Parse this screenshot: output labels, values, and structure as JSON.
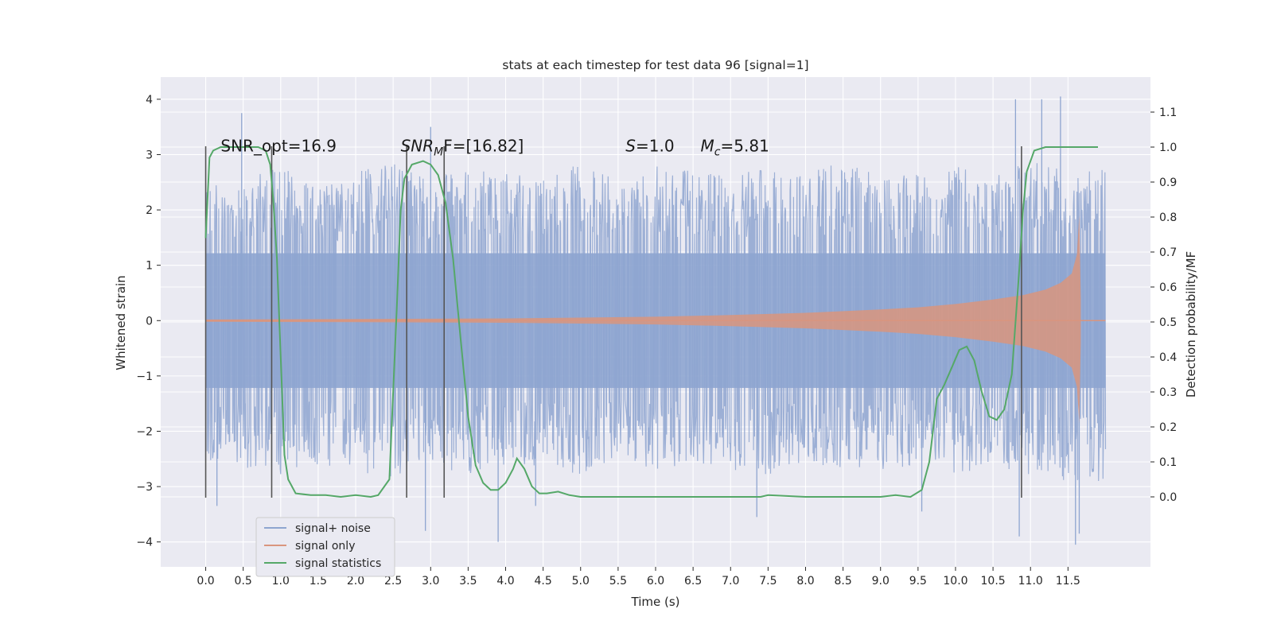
{
  "chart_data": {
    "type": "line",
    "title": "stats at each timestep for test data 96 [signal=1]",
    "xlabel": "Time (s)",
    "ylabel": "Whitened strain",
    "ylabel_right": "Detection probability/MF",
    "xlim": [
      -0.6,
      12.6
    ],
    "ylim": [
      -4.45,
      4.4
    ],
    "ylim_right": [
      -0.2,
      1.2
    ],
    "x_ticks": [
      0.0,
      0.5,
      1.0,
      1.5,
      2.0,
      2.5,
      3.0,
      3.5,
      4.0,
      4.5,
      5.0,
      5.5,
      6.0,
      6.5,
      7.0,
      7.5,
      8.0,
      8.5,
      9.0,
      9.5,
      10.0,
      10.5,
      11.0,
      11.5
    ],
    "x_tick_labels": [
      "0.0",
      "0.5",
      "1.0",
      "1.5",
      "2.0",
      "2.5",
      "3.0",
      "3.5",
      "4.0",
      "4.5",
      "5.0",
      "5.5",
      "6.0",
      "6.5",
      "7.0",
      "7.5",
      "8.0",
      "8.5",
      "9.0",
      "9.5",
      "10.0",
      "10.5",
      "11.0",
      "11.5"
    ],
    "y_ticks": [
      -4,
      -3,
      -2,
      -1,
      0,
      1,
      2,
      3,
      4
    ],
    "y_tick_labels": [
      "−4",
      "−3",
      "−2",
      "−1",
      "0",
      "1",
      "2",
      "3",
      "4"
    ],
    "y_right_ticks": [
      0.0,
      0.1,
      0.2,
      0.3,
      0.4,
      0.5,
      0.6,
      0.7,
      0.8,
      0.9,
      1.0,
      1.1
    ],
    "y_right_tick_labels": [
      "0.0",
      "0.1",
      "0.2",
      "0.3",
      "0.4",
      "0.5",
      "0.6",
      "0.7",
      "0.8",
      "0.9",
      "1.0",
      "1.1"
    ],
    "grid": true,
    "legend_position": "lower-left",
    "annotations": [
      {
        "id": "snr-opt",
        "text": "SNR_opt=16.9",
        "x": 0.2,
        "y": 3.2
      },
      {
        "id": "snr-mf",
        "parts": [
          [
            "SNR",
            "i"
          ],
          [
            "M",
            "sub-i"
          ],
          [
            "F=[16.82]",
            "n"
          ]
        ],
        "x": 2.6,
        "y": 3.2
      },
      {
        "id": "s",
        "parts": [
          [
            "S",
            "i"
          ],
          [
            "=1.0",
            "n"
          ]
        ],
        "x": 5.6,
        "y": 3.2
      },
      {
        "id": "mc",
        "parts": [
          [
            "M",
            "i"
          ],
          [
            "c",
            "sub-i"
          ],
          [
            "=5.81",
            "n"
          ]
        ],
        "x": 6.6,
        "y": 3.2
      }
    ],
    "vertical_markers": [
      {
        "x": 0.0,
        "y_range": [
          -3.2,
          3.15
        ]
      },
      {
        "x": 0.88,
        "y_range": [
          -3.2,
          3.15
        ]
      },
      {
        "x": 2.68,
        "y_range": [
          -3.2,
          3.15
        ]
      },
      {
        "x": 3.18,
        "y_range": [
          -3.2,
          3.15
        ]
      },
      {
        "x": 10.88,
        "y_range": [
          -3.2,
          3.15
        ]
      }
    ],
    "series": [
      {
        "name": "signal+ noise",
        "color": "#8ea5d0",
        "axis": "left",
        "x_range": [
          0.0,
          12.0
        ],
        "envelope": {
          "description": "dense whitened noise trace filling roughly -2.3..2.3 with spikes to about ±4",
          "upper": [
            2.4,
            2.6,
            2.8,
            2.5,
            2.7,
            2.9,
            2.6,
            2.8,
            2.7,
            2.6,
            2.9,
            2.5,
            2.8,
            2.7,
            2.6,
            2.8,
            2.7,
            2.9,
            2.6,
            2.7,
            2.8,
            2.6,
            2.9,
            2.7,
            2.8
          ],
          "lower": [
            -2.5,
            -2.7,
            -2.8,
            -2.6,
            -2.7,
            -2.9,
            -2.6,
            -2.8,
            -2.7,
            -2.6,
            -2.8,
            -2.5,
            -2.7,
            -2.6,
            -2.7,
            -2.8,
            -2.6,
            -2.8,
            -2.7,
            -2.6,
            -2.8,
            -2.6,
            -2.8,
            -2.9,
            -3.0
          ],
          "spikes": [
            [
              0.48,
              3.75
            ],
            [
              0.15,
              -3.35
            ],
            [
              2.93,
              -3.8
            ],
            [
              3.0,
              3.5
            ],
            [
              3.9,
              -4.0
            ],
            [
              4.4,
              -3.35
            ],
            [
              7.35,
              -3.55
            ],
            [
              9.55,
              -3.45
            ],
            [
              10.8,
              4.0
            ],
            [
              10.85,
              -3.9
            ],
            [
              11.15,
              4.0
            ],
            [
              11.4,
              4.05
            ],
            [
              11.6,
              -4.05
            ],
            [
              11.65,
              -3.85
            ]
          ]
        }
      },
      {
        "name": "signal only",
        "color": "#d9957e",
        "axis": "left",
        "x_range": [
          0.0,
          11.67
        ],
        "envelope_points": [
          [
            0.0,
            0.02
          ],
          [
            2.0,
            0.03
          ],
          [
            4.0,
            0.04
          ],
          [
            6.0,
            0.07
          ],
          [
            7.0,
            0.1
          ],
          [
            8.0,
            0.14
          ],
          [
            9.0,
            0.2
          ],
          [
            9.5,
            0.24
          ],
          [
            10.0,
            0.3
          ],
          [
            10.5,
            0.38
          ],
          [
            10.9,
            0.46
          ],
          [
            11.2,
            0.56
          ],
          [
            11.4,
            0.68
          ],
          [
            11.55,
            0.85
          ],
          [
            11.62,
            1.2
          ],
          [
            11.65,
            1.9
          ],
          [
            11.67,
            0.4
          ]
        ]
      },
      {
        "name": "signal statistics",
        "color": "#55a868",
        "axis": "right",
        "x": [
          0.0,
          0.05,
          0.1,
          0.2,
          0.3,
          0.5,
          0.7,
          0.8,
          0.86,
          0.9,
          0.95,
          1.0,
          1.05,
          1.1,
          1.2,
          1.4,
          1.6,
          1.8,
          2.0,
          2.2,
          2.3,
          2.45,
          2.55,
          2.6,
          2.65,
          2.75,
          2.9,
          3.0,
          3.1,
          3.2,
          3.3,
          3.4,
          3.5,
          3.6,
          3.7,
          3.8,
          3.9,
          4.0,
          4.1,
          4.15,
          4.25,
          4.35,
          4.45,
          4.55,
          4.7,
          4.85,
          5.0,
          5.5,
          6.0,
          6.5,
          7.0,
          7.4,
          7.5,
          8.0,
          8.5,
          9.0,
          9.2,
          9.4,
          9.55,
          9.65,
          9.75,
          9.85,
          9.95,
          10.05,
          10.15,
          10.25,
          10.35,
          10.45,
          10.55,
          10.65,
          10.75,
          10.85,
          10.9,
          10.95,
          11.05,
          11.2,
          11.5,
          11.7,
          11.9
        ],
        "values": [
          0.74,
          0.97,
          0.99,
          1.0,
          1.0,
          1.0,
          1.0,
          0.99,
          0.95,
          0.85,
          0.68,
          0.4,
          0.12,
          0.05,
          0.01,
          0.005,
          0.005,
          0.0,
          0.005,
          0.0,
          0.005,
          0.05,
          0.55,
          0.82,
          0.91,
          0.95,
          0.96,
          0.95,
          0.92,
          0.84,
          0.68,
          0.45,
          0.23,
          0.09,
          0.04,
          0.02,
          0.02,
          0.04,
          0.08,
          0.11,
          0.08,
          0.03,
          0.01,
          0.01,
          0.015,
          0.005,
          0.0,
          0.0,
          0.0,
          0.0,
          0.0,
          0.0,
          0.005,
          0.0,
          0.0,
          0.0,
          0.005,
          0.0,
          0.02,
          0.1,
          0.28,
          0.32,
          0.37,
          0.42,
          0.43,
          0.39,
          0.3,
          0.23,
          0.22,
          0.25,
          0.35,
          0.65,
          0.82,
          0.93,
          0.99,
          1.0,
          1.0,
          1.0,
          1.0
        ]
      }
    ]
  }
}
